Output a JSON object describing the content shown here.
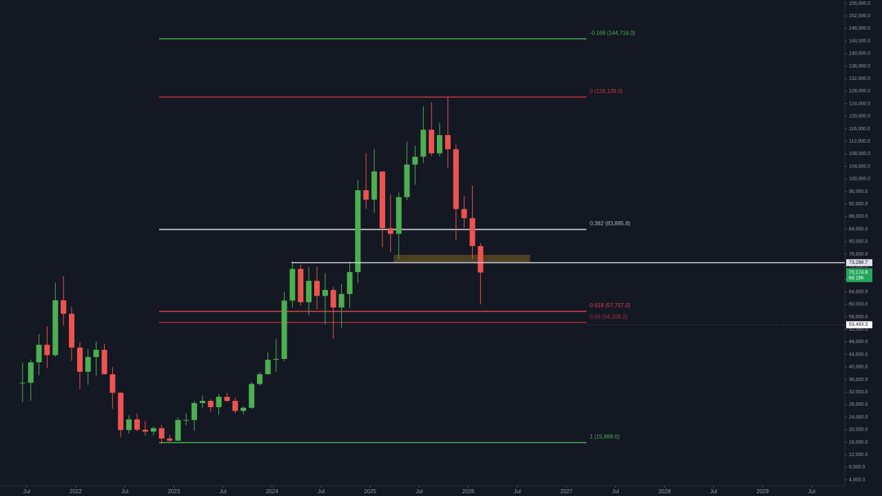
{
  "chart_data": {
    "type": "candlestick",
    "up_color": "#4caf50",
    "down_color": "#ef5350",
    "x": [
      2021.458,
      2021.542,
      2021.625,
      2021.708,
      2021.792,
      2021.875,
      2021.958,
      2022.042,
      2022.125,
      2022.208,
      2022.292,
      2022.375,
      2022.458,
      2022.542,
      2022.625,
      2022.708,
      2022.792,
      2022.875,
      2022.958,
      2023.042,
      2023.125,
      2023.208,
      2023.292,
      2023.375,
      2023.458,
      2023.542,
      2023.625,
      2023.708,
      2023.792,
      2023.875,
      2023.958,
      2024.042,
      2024.125,
      2024.208,
      2024.292,
      2024.375,
      2024.458,
      2024.542,
      2024.625,
      2024.708,
      2024.792,
      2024.875,
      2024.958,
      2025.042,
      2025.125,
      2025.208,
      2025.292,
      2025.375,
      2025.458,
      2025.542,
      2025.625,
      2025.708,
      2025.792,
      2025.875,
      2025.958,
      2026.042,
      2026.125
    ],
    "open": [
      35000,
      35000,
      41500,
      47100,
      43800,
      61300,
      57000,
      46200,
      38500,
      43200,
      45500,
      37700,
      31800,
      19900,
      23300,
      20000,
      19400,
      20500,
      17200,
      16500,
      23100,
      23100,
      28500,
      29200,
      27200,
      30500,
      29200,
      26000,
      27000,
      34600,
      37700,
      42300,
      42600,
      61200,
      71300,
      60700,
      67500,
      62700,
      64600,
      59000,
      63300,
      70300,
      96400,
      93400,
      102400,
      84300,
      82500,
      94200,
      104600,
      107100,
      115700,
      108200,
      114000,
      109500,
      90400,
      87500,
      78600
    ],
    "high": [
      41300,
      42400,
      50500,
      52900,
      67000,
      69000,
      59100,
      47900,
      45800,
      48200,
      47400,
      40000,
      31900,
      24600,
      25200,
      22800,
      21000,
      21500,
      18400,
      23900,
      25300,
      29200,
      31000,
      29800,
      31400,
      31800,
      30200,
      27500,
      35200,
      38400,
      44700,
      48900,
      63900,
      73800,
      72700,
      71900,
      72000,
      70000,
      65600,
      66500,
      73600,
      99600,
      108300,
      109600,
      102500,
      95000,
      95700,
      111900,
      110600,
      123200,
      124500,
      117900,
      126100,
      111000,
      94600,
      97900,
      79500
    ],
    "low": [
      28800,
      29300,
      37300,
      39600,
      43300,
      53300,
      42000,
      32900,
      34300,
      37200,
      37700,
      26700,
      17600,
      18800,
      19600,
      18200,
      18200,
      15500,
      16300,
      16500,
      21400,
      19600,
      26900,
      25800,
      24800,
      28900,
      25200,
      24900,
      26600,
      34100,
      37600,
      38500,
      41900,
      59000,
      59600,
      56500,
      58400,
      53500,
      49000,
      52500,
      58900,
      66800,
      90500,
      89200,
      78200,
      76600,
      74400,
      93300,
      98200,
      105100,
      107300,
      107200,
      103500,
      80600,
      84400,
      74500,
      60000
    ],
    "close": [
      35000,
      41500,
      47100,
      43800,
      61300,
      57000,
      46200,
      38500,
      43200,
      45500,
      37700,
      31800,
      19900,
      23300,
      20000,
      19400,
      20500,
      17200,
      16500,
      23100,
      23100,
      28500,
      29200,
      27200,
      30500,
      29200,
      26000,
      27000,
      34600,
      37700,
      42300,
      42600,
      61200,
      71300,
      60700,
      67500,
      62700,
      64600,
      59000,
      63300,
      70300,
      96400,
      93400,
      102400,
      84300,
      82500,
      94200,
      104600,
      107100,
      115700,
      108200,
      114000,
      109500,
      90400,
      87500,
      78600,
      70174.8
    ],
    "xlim": [
      2021.228,
      2029.83
    ],
    "ylim": [
      -1143,
      157099
    ],
    "xticks": [
      {
        "value": 2021.5,
        "label": "Jul"
      },
      {
        "value": 2022,
        "label": "2022"
      },
      {
        "value": 2022.5,
        "label": "Jul"
      },
      {
        "value": 2023,
        "label": "2023"
      },
      {
        "value": 2023.5,
        "label": "Jul"
      },
      {
        "value": 2024,
        "label": "2024"
      },
      {
        "value": 2024.5,
        "label": "Jul"
      },
      {
        "value": 2025,
        "label": "2025"
      },
      {
        "value": 2025.5,
        "label": "Jul"
      },
      {
        "value": 2026,
        "label": "2026"
      },
      {
        "value": 2026.5,
        "label": "Jul"
      },
      {
        "value": 2027,
        "label": "2027"
      },
      {
        "value": 2027.5,
        "label": "Jul"
      },
      {
        "value": 2028,
        "label": "2028"
      },
      {
        "value": 2028.5,
        "label": "Jul"
      },
      {
        "value": 2029,
        "label": "2029"
      },
      {
        "value": 2029.5,
        "label": "Jul"
      }
    ],
    "yticks": [
      {
        "value": 4000,
        "label": "4,000.0"
      },
      {
        "value": 8000,
        "label": "8,000.0"
      },
      {
        "value": 12000,
        "label": "12,000.0"
      },
      {
        "value": 16000,
        "label": "16,000.0"
      },
      {
        "value": 20000,
        "label": "20,000.0"
      },
      {
        "value": 24000,
        "label": "24,000.0"
      },
      {
        "value": 28000,
        "label": "28,000.0"
      },
      {
        "value": 32000,
        "label": "32,000.0"
      },
      {
        "value": 36000,
        "label": "36,000.0"
      },
      {
        "value": 40000,
        "label": "40,000.0"
      },
      {
        "value": 44000,
        "label": "44,000.0"
      },
      {
        "value": 48000,
        "label": "48,000.0"
      },
      {
        "value": 52000,
        "label": "52,000.0"
      },
      {
        "value": 56000,
        "label": "56,000.0"
      },
      {
        "value": 60000,
        "label": "60,000.0"
      },
      {
        "value": 64000,
        "label": "64,000.0"
      },
      {
        "value": 68000,
        "label": "68,000.0"
      },
      {
        "value": 72000,
        "label": "72,000.0"
      },
      {
        "value": 76000,
        "label": "76,000.0"
      },
      {
        "value": 80000,
        "label": "80,000.0"
      },
      {
        "value": 84000,
        "label": "84,000.0"
      },
      {
        "value": 88000,
        "label": "88,000.0"
      },
      {
        "value": 92000,
        "label": "92,000.0"
      },
      {
        "value": 96000,
        "label": "96,000.0"
      },
      {
        "value": 100000,
        "label": "100,000.0"
      },
      {
        "value": 104000,
        "label": "104,000.0"
      },
      {
        "value": 108000,
        "label": "108,000.0"
      },
      {
        "value": 112000,
        "label": "112,000.0"
      },
      {
        "value": 116000,
        "label": "116,000.0"
      },
      {
        "value": 120000,
        "label": "120,000.0"
      },
      {
        "value": 124000,
        "label": "124,000.0"
      },
      {
        "value": 128000,
        "label": "128,000.0"
      },
      {
        "value": 132000,
        "label": "132,000.0"
      },
      {
        "value": 136000,
        "label": "136,000.0"
      },
      {
        "value": 140000,
        "label": "140,000.0"
      },
      {
        "value": 144000,
        "label": "144,000.0"
      },
      {
        "value": 148000,
        "label": "148,000.0"
      },
      {
        "value": 152000,
        "label": "152,000.0"
      },
      {
        "value": 156000,
        "label": "156,000.0"
      }
    ],
    "levels": [
      {
        "label": "-0.168 (144,716.0)",
        "value": 144716,
        "color": "#4caf50"
      },
      {
        "label": "0 (126,128.0)",
        "value": 126128,
        "color": "#c2393f"
      },
      {
        "label": "0.382 (83,885.8)",
        "value": 83885.8,
        "color": "#b2b5be"
      },
      {
        "label": "0.618 (57,757.0)",
        "value": 57757,
        "color": "#e0434b"
      },
      {
        "label": "0.65 (54,208.2)",
        "value": 54208.2,
        "color": "#a8323a"
      },
      {
        "label": "1 (15,888.0)",
        "value": 15888,
        "color": "#4caf50"
      }
    ],
    "zone": {
      "x": [
        2025.24,
        2026.63
      ],
      "y": [
        73300,
        75800
      ],
      "color": "#5a4a22"
    },
    "price_line": {
      "value": 73288.7,
      "label": "73,288.7",
      "x": 2024.2
    },
    "marker": {
      "value": 53493.3,
      "label": "53,493.3"
    },
    "last_price": {
      "label": "70,174.8",
      "countdown": "6d 19h"
    }
  }
}
